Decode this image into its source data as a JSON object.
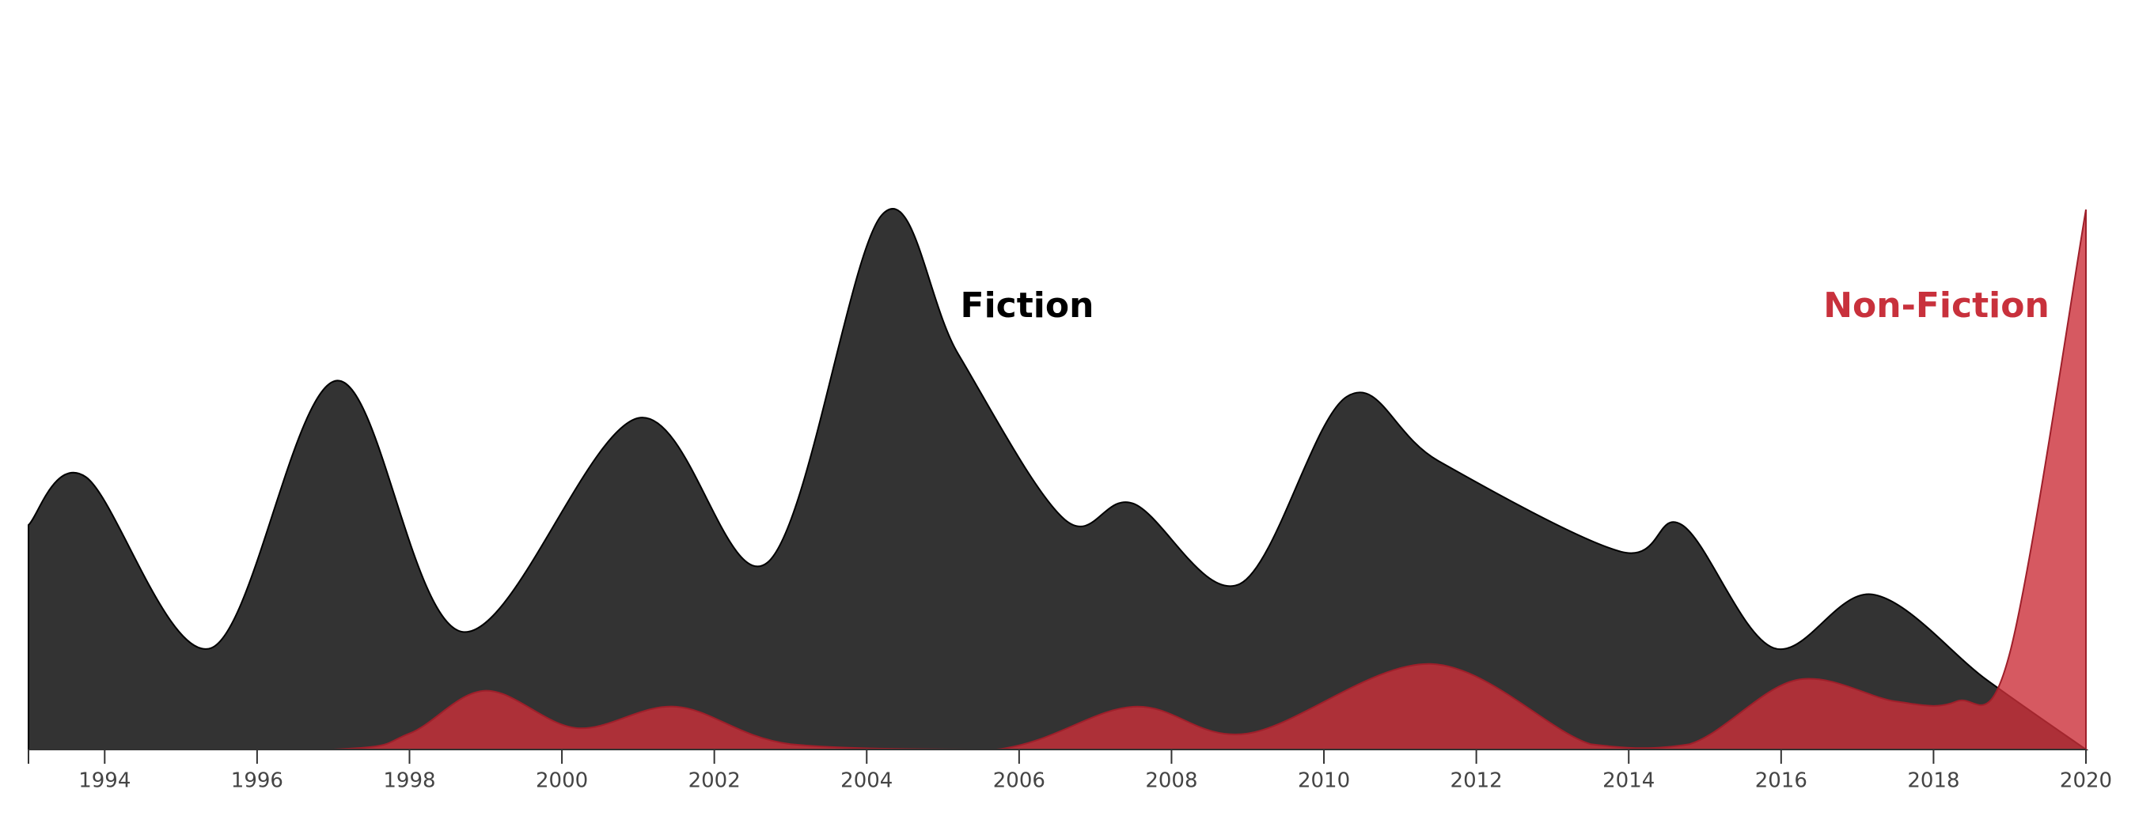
{
  "chart_data": {
    "type": "area",
    "xlim": [
      1993,
      2020
    ],
    "xticks": [
      1994,
      1996,
      1998,
      2000,
      2002,
      2004,
      2006,
      2008,
      2010,
      2012,
      2014,
      2016,
      2018,
      2020
    ],
    "series": [
      {
        "name": "Fiction",
        "color": "#333333",
        "x": [
          1993,
          1993.75,
          1995.4,
          1997.05,
          1998.7,
          2001,
          2002.7,
          2004.2,
          2005.2,
          2006.6,
          2007.5,
          2008.9,
          2010.3,
          2011.5,
          2013.9,
          2014.7,
          2015.9,
          2017.2,
          2018.7,
          2020
        ],
        "values": [
          42,
          51,
          19,
          69,
          22,
          62,
          35,
          100,
          74,
          43,
          46,
          31,
          66,
          54,
          37,
          42,
          19,
          29,
          13,
          0
        ]
      },
      {
        "name": "Non-Fiction",
        "color": "#cc2f3a",
        "x": [
          1993,
          1997,
          1998,
          1999,
          2000.2,
          2001.5,
          2003,
          2005.7,
          2007.5,
          2009,
          2011.4,
          2013.5,
          2014.8,
          2016.2,
          2017.5,
          2018.3,
          2019,
          2020
        ],
        "values": [
          0,
          0,
          3,
          11,
          4,
          8,
          1,
          0,
          8,
          3,
          16,
          1,
          1,
          13,
          9,
          9,
          18,
          101
        ]
      }
    ]
  }
}
